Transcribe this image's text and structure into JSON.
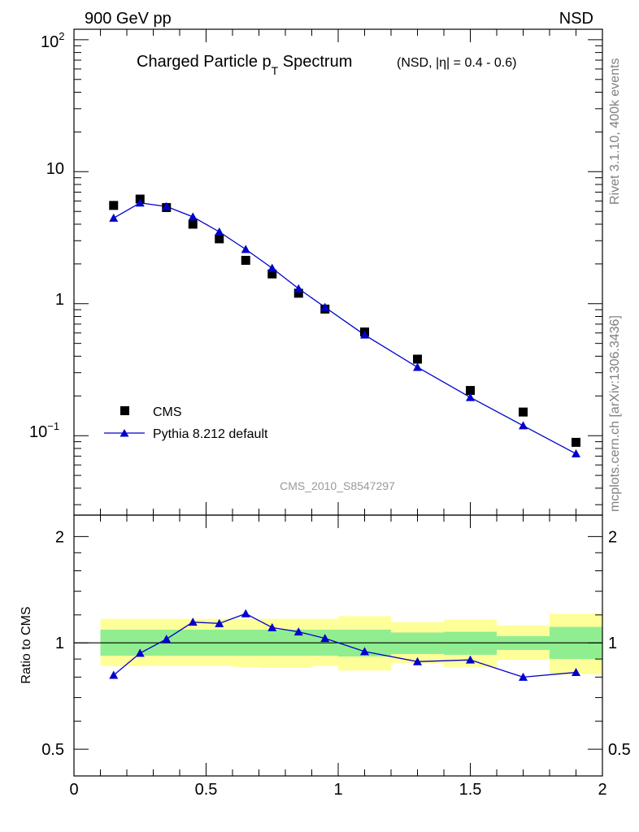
{
  "header": {
    "left_label": "900 GeV pp",
    "right_label": "NSD"
  },
  "side_text": {
    "rivet": "Rivet 3.1.10,  400k events",
    "source": "mcplots.cern.ch [arXiv:1306.3436]"
  },
  "watermark": "CMS_2010_S8547297",
  "colors": {
    "mc_line": "#0000cc",
    "band_inner": "#90ee90",
    "band_outer": "#ffff99",
    "watermark": "#999999",
    "side_text": "#808080"
  },
  "chart_data": [
    {
      "type": "scatter",
      "panel": "main",
      "title": "Charged Particle p_T Spectrum",
      "title_main": "Charged Particle p",
      "title_sub": "T",
      "title_tail": " Spectrum",
      "subtitle": "(NSD, |η| = 0.4 - 0.6)",
      "xlabel": "",
      "ylabel": "",
      "xlim": [
        0,
        2
      ],
      "ylim": [
        0.025,
        120
      ],
      "yscale": "log",
      "ytick_labels": {
        "e2": "10",
        "e2_exp": "2",
        "ten": "10",
        "one": "1",
        "em1": "10",
        "em1_exp": "−1"
      },
      "legend_position": "bottom-left",
      "series": [
        {
          "name": "CMS",
          "marker": "square",
          "x": [
            0.15,
            0.25,
            0.35,
            0.45,
            0.55,
            0.65,
            0.75,
            0.85,
            0.95,
            1.1,
            1.3,
            1.5,
            1.7,
            1.9
          ],
          "y": [
            5.55,
            6.2,
            5.35,
            4.0,
            3.1,
            2.13,
            1.68,
            1.2,
            0.91,
            0.61,
            0.38,
            0.22,
            0.151,
            0.089
          ]
        },
        {
          "name": "Pythia 8.212 default",
          "marker": "triangle",
          "x": [
            0.15,
            0.25,
            0.35,
            0.45,
            0.55,
            0.65,
            0.75,
            0.85,
            0.95,
            1.1,
            1.3,
            1.5,
            1.7,
            1.9
          ],
          "y": [
            4.45,
            5.8,
            5.45,
            4.55,
            3.5,
            2.58,
            1.86,
            1.3,
            0.94,
            0.58,
            0.33,
            0.195,
            0.119,
            0.073
          ]
        }
      ]
    },
    {
      "type": "line",
      "panel": "ratio",
      "ylabel": "Ratio to CMS",
      "xlim": [
        0,
        2
      ],
      "ylim": [
        0.42,
        2.3
      ],
      "yticks": [
        0.5,
        1,
        2
      ],
      "ytick_labels": [
        "0.5",
        "1",
        "2"
      ],
      "xticks": [
        0,
        0.5,
        1,
        1.5,
        2
      ],
      "xtick_labels": [
        "0",
        "0.5",
        "1",
        "1.5",
        "2"
      ],
      "reference_line": 1,
      "bands": [
        {
          "x0": 0.1,
          "x1": 0.2,
          "inner": [
            0.92,
            1.09
          ],
          "outer": [
            0.86,
            1.17
          ]
        },
        {
          "x0": 0.2,
          "x1": 0.3,
          "inner": [
            0.92,
            1.09
          ],
          "outer": [
            0.86,
            1.17
          ]
        },
        {
          "x0": 0.3,
          "x1": 0.4,
          "inner": [
            0.92,
            1.09
          ],
          "outer": [
            0.86,
            1.17
          ]
        },
        {
          "x0": 0.4,
          "x1": 0.5,
          "inner": [
            0.92,
            1.09
          ],
          "outer": [
            0.86,
            1.17
          ]
        },
        {
          "x0": 0.5,
          "x1": 0.6,
          "inner": [
            0.92,
            1.09
          ],
          "outer": [
            0.86,
            1.17
          ]
        },
        {
          "x0": 0.6,
          "x1": 0.7,
          "inner": [
            0.92,
            1.09
          ],
          "outer": [
            0.855,
            1.17
          ]
        },
        {
          "x0": 0.7,
          "x1": 0.8,
          "inner": [
            0.92,
            1.09
          ],
          "outer": [
            0.85,
            1.17
          ]
        },
        {
          "x0": 0.8,
          "x1": 0.9,
          "inner": [
            0.92,
            1.09
          ],
          "outer": [
            0.85,
            1.17
          ]
        },
        {
          "x0": 0.9,
          "x1": 1.0,
          "inner": [
            0.92,
            1.09
          ],
          "outer": [
            0.86,
            1.17
          ]
        },
        {
          "x0": 1.0,
          "x1": 1.2,
          "inner": [
            0.915,
            1.09
          ],
          "outer": [
            0.835,
            1.19
          ]
        },
        {
          "x0": 1.2,
          "x1": 1.4,
          "inner": [
            0.93,
            1.07
          ],
          "outer": [
            0.875,
            1.145
          ]
        },
        {
          "x0": 1.4,
          "x1": 1.6,
          "inner": [
            0.925,
            1.075
          ],
          "outer": [
            0.855,
            1.165
          ]
        },
        {
          "x0": 1.6,
          "x1": 1.8,
          "inner": [
            0.955,
            1.045
          ],
          "outer": [
            0.895,
            1.12
          ]
        },
        {
          "x0": 1.8,
          "x1": 2.0,
          "inner": [
            0.9,
            1.11
          ],
          "outer": [
            0.815,
            1.21
          ]
        }
      ],
      "series": [
        {
          "name": "Pythia 8.212 default / CMS",
          "x": [
            0.15,
            0.25,
            0.35,
            0.45,
            0.55,
            0.65,
            0.75,
            0.85,
            0.95,
            1.1,
            1.3,
            1.5,
            1.7,
            1.9
          ],
          "y": [
            0.81,
            0.935,
            1.025,
            1.145,
            1.135,
            1.21,
            1.105,
            1.075,
            1.03,
            0.945,
            0.885,
            0.895,
            0.8,
            0.825
          ]
        }
      ]
    }
  ]
}
